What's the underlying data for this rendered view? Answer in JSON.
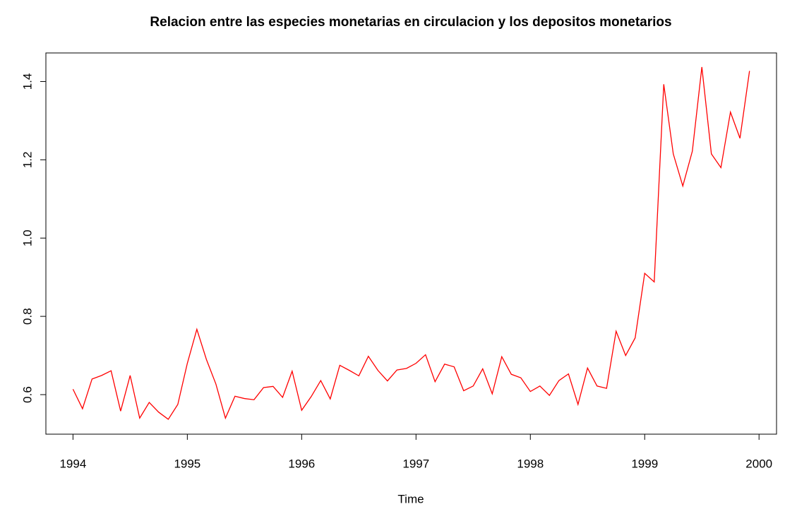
{
  "chart_data": {
    "type": "line",
    "title": "Relacion entre las especies monetarias en circulacion y los depositos monetarios",
    "x_label": "Time",
    "x": [
      1994.0,
      1994.0833,
      1994.1667,
      1994.25,
      1994.3333,
      1994.4167,
      1994.5,
      1994.5833,
      1994.6667,
      1994.75,
      1994.8333,
      1994.9167,
      1995.0,
      1995.0833,
      1995.1667,
      1995.25,
      1995.3333,
      1995.4167,
      1995.5,
      1995.5833,
      1995.6667,
      1995.75,
      1995.8333,
      1995.9167,
      1996.0,
      1996.0833,
      1996.1667,
      1996.25,
      1996.3333,
      1996.4167,
      1996.5,
      1996.5833,
      1996.6667,
      1996.75,
      1996.8333,
      1996.9167,
      1997.0,
      1997.0833,
      1997.1667,
      1997.25,
      1997.3333,
      1997.4167,
      1997.5,
      1997.5833,
      1997.6667,
      1997.75,
      1997.8333,
      1997.9167,
      1998.0,
      1998.0833,
      1998.1667,
      1998.25,
      1998.3333,
      1998.4167,
      1998.5,
      1998.5833,
      1998.6667,
      1998.75,
      1998.8333,
      1998.9167,
      1999.0,
      1999.0833,
      1999.1667,
      1999.25,
      1999.3333,
      1999.4167,
      1999.5,
      1999.5833,
      1999.6667,
      1999.75,
      1999.8333,
      1999.9167
    ],
    "series": [
      {
        "color": "#ff0000",
        "values": [
          0.614,
          0.564,
          0.64,
          0.649,
          0.661,
          0.558,
          0.649,
          0.54,
          0.58,
          0.555,
          0.537,
          0.575,
          0.68,
          0.767,
          0.69,
          0.627,
          0.54,
          0.596,
          0.59,
          0.587,
          0.618,
          0.621,
          0.593,
          0.66,
          0.56,
          0.595,
          0.636,
          0.589,
          0.675,
          0.662,
          0.648,
          0.698,
          0.662,
          0.635,
          0.663,
          0.667,
          0.68,
          0.702,
          0.633,
          0.678,
          0.671,
          0.61,
          0.622,
          0.666,
          0.602,
          0.697,
          0.652,
          0.643,
          0.608,
          0.622,
          0.598,
          0.636,
          0.653,
          0.575,
          0.668,
          0.622,
          0.616,
          0.762,
          0.7,
          0.745,
          0.91,
          0.888,
          1.393,
          1.215,
          1.133,
          1.222,
          1.437,
          1.215,
          1.18,
          1.322,
          1.255,
          1.427
        ]
      }
    ],
    "xlim": [
      1993.763,
      2000.153
    ],
    "ylim": [
      0.499,
      1.473
    ],
    "xticks": [
      1994,
      1995,
      1996,
      1997,
      1998,
      1999,
      2000
    ],
    "yticks": [
      0.6,
      0.8,
      {
        "value": 1,
        "label": "1.0"
      },
      1.2,
      1.4
    ]
  }
}
